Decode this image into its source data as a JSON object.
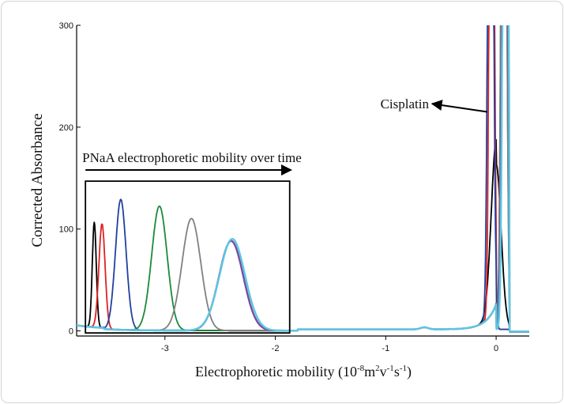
{
  "chart_data": {
    "type": "line",
    "title": "",
    "xlabel": "Electrophoretic mobility (10",
    "xlabel_exp1": "-8",
    "xlabel_mid": "m",
    "xlabel_exp2": "2",
    "xlabel_v": "v",
    "xlabel_exp3": "-1",
    "xlabel_s": "s",
    "xlabel_exp4": "-1",
    "xlabel_end": ")",
    "ylabel": "Corrected Absorbance",
    "xlim": [
      -3.8,
      0.3
    ],
    "ylim": [
      -5,
      300
    ],
    "x_ticks": [
      -3,
      -2,
      -1,
      0
    ],
    "y_ticks": [
      0,
      100,
      200,
      300
    ],
    "annotations": {
      "box_label": "PNaA electrophoretic mobility over time",
      "box": {
        "x0": -3.72,
        "x1": -1.87,
        "y0": -2,
        "y1": 147
      },
      "arrow_x": [
        -3.72,
        -1.9
      ],
      "arrow_y": 158,
      "cisplatin_label": "Cisplatin",
      "cisplatin_arrow_from": [
        -0.08,
        215
      ],
      "cisplatin_arrow_to": [
        -0.58,
        223
      ]
    },
    "series": [
      {
        "color": "#000000",
        "peak_center": -3.64,
        "peak_height": 103,
        "peak_width": 0.018,
        "cis_center": 0.0,
        "cis_height": 162,
        "cis_width": 0.045,
        "clip": false
      },
      {
        "color": "#e02020",
        "peak_center": -3.57,
        "peak_height": 102,
        "peak_width": 0.028,
        "cis_center": -0.04,
        "cis_height": 900,
        "cis_width": 0.018,
        "clip": true
      },
      {
        "color": "#2040a0",
        "peak_center": -3.4,
        "peak_height": 128,
        "peak_width": 0.048,
        "cis_center": -0.05,
        "cis_height": 900,
        "cis_width": 0.02,
        "clip": true
      },
      {
        "color": "#1a8a3a",
        "peak_center": -3.05,
        "peak_height": 122,
        "peak_width": 0.07,
        "cis_center": 0.07,
        "cis_height": 900,
        "cis_width": 0.02,
        "clip": true
      },
      {
        "color": "#808080",
        "peak_center": -2.76,
        "peak_height": 110,
        "peak_width": 0.085,
        "cis_center": 0.07,
        "cis_height": 900,
        "cis_width": 0.02,
        "clip": true
      },
      {
        "color": "#7a4aa0",
        "peak_center": -2.4,
        "peak_height": 88,
        "peak_width": 0.11,
        "cis_center": 0.08,
        "cis_height": 900,
        "cis_width": 0.02,
        "clip": true
      },
      {
        "color": "#5bc8e0",
        "peak_center": -2.39,
        "peak_height": 90,
        "peak_width": 0.115,
        "cis_center": 0.085,
        "cis_height": 900,
        "cis_width": 0.02,
        "clip": true
      }
    ]
  }
}
